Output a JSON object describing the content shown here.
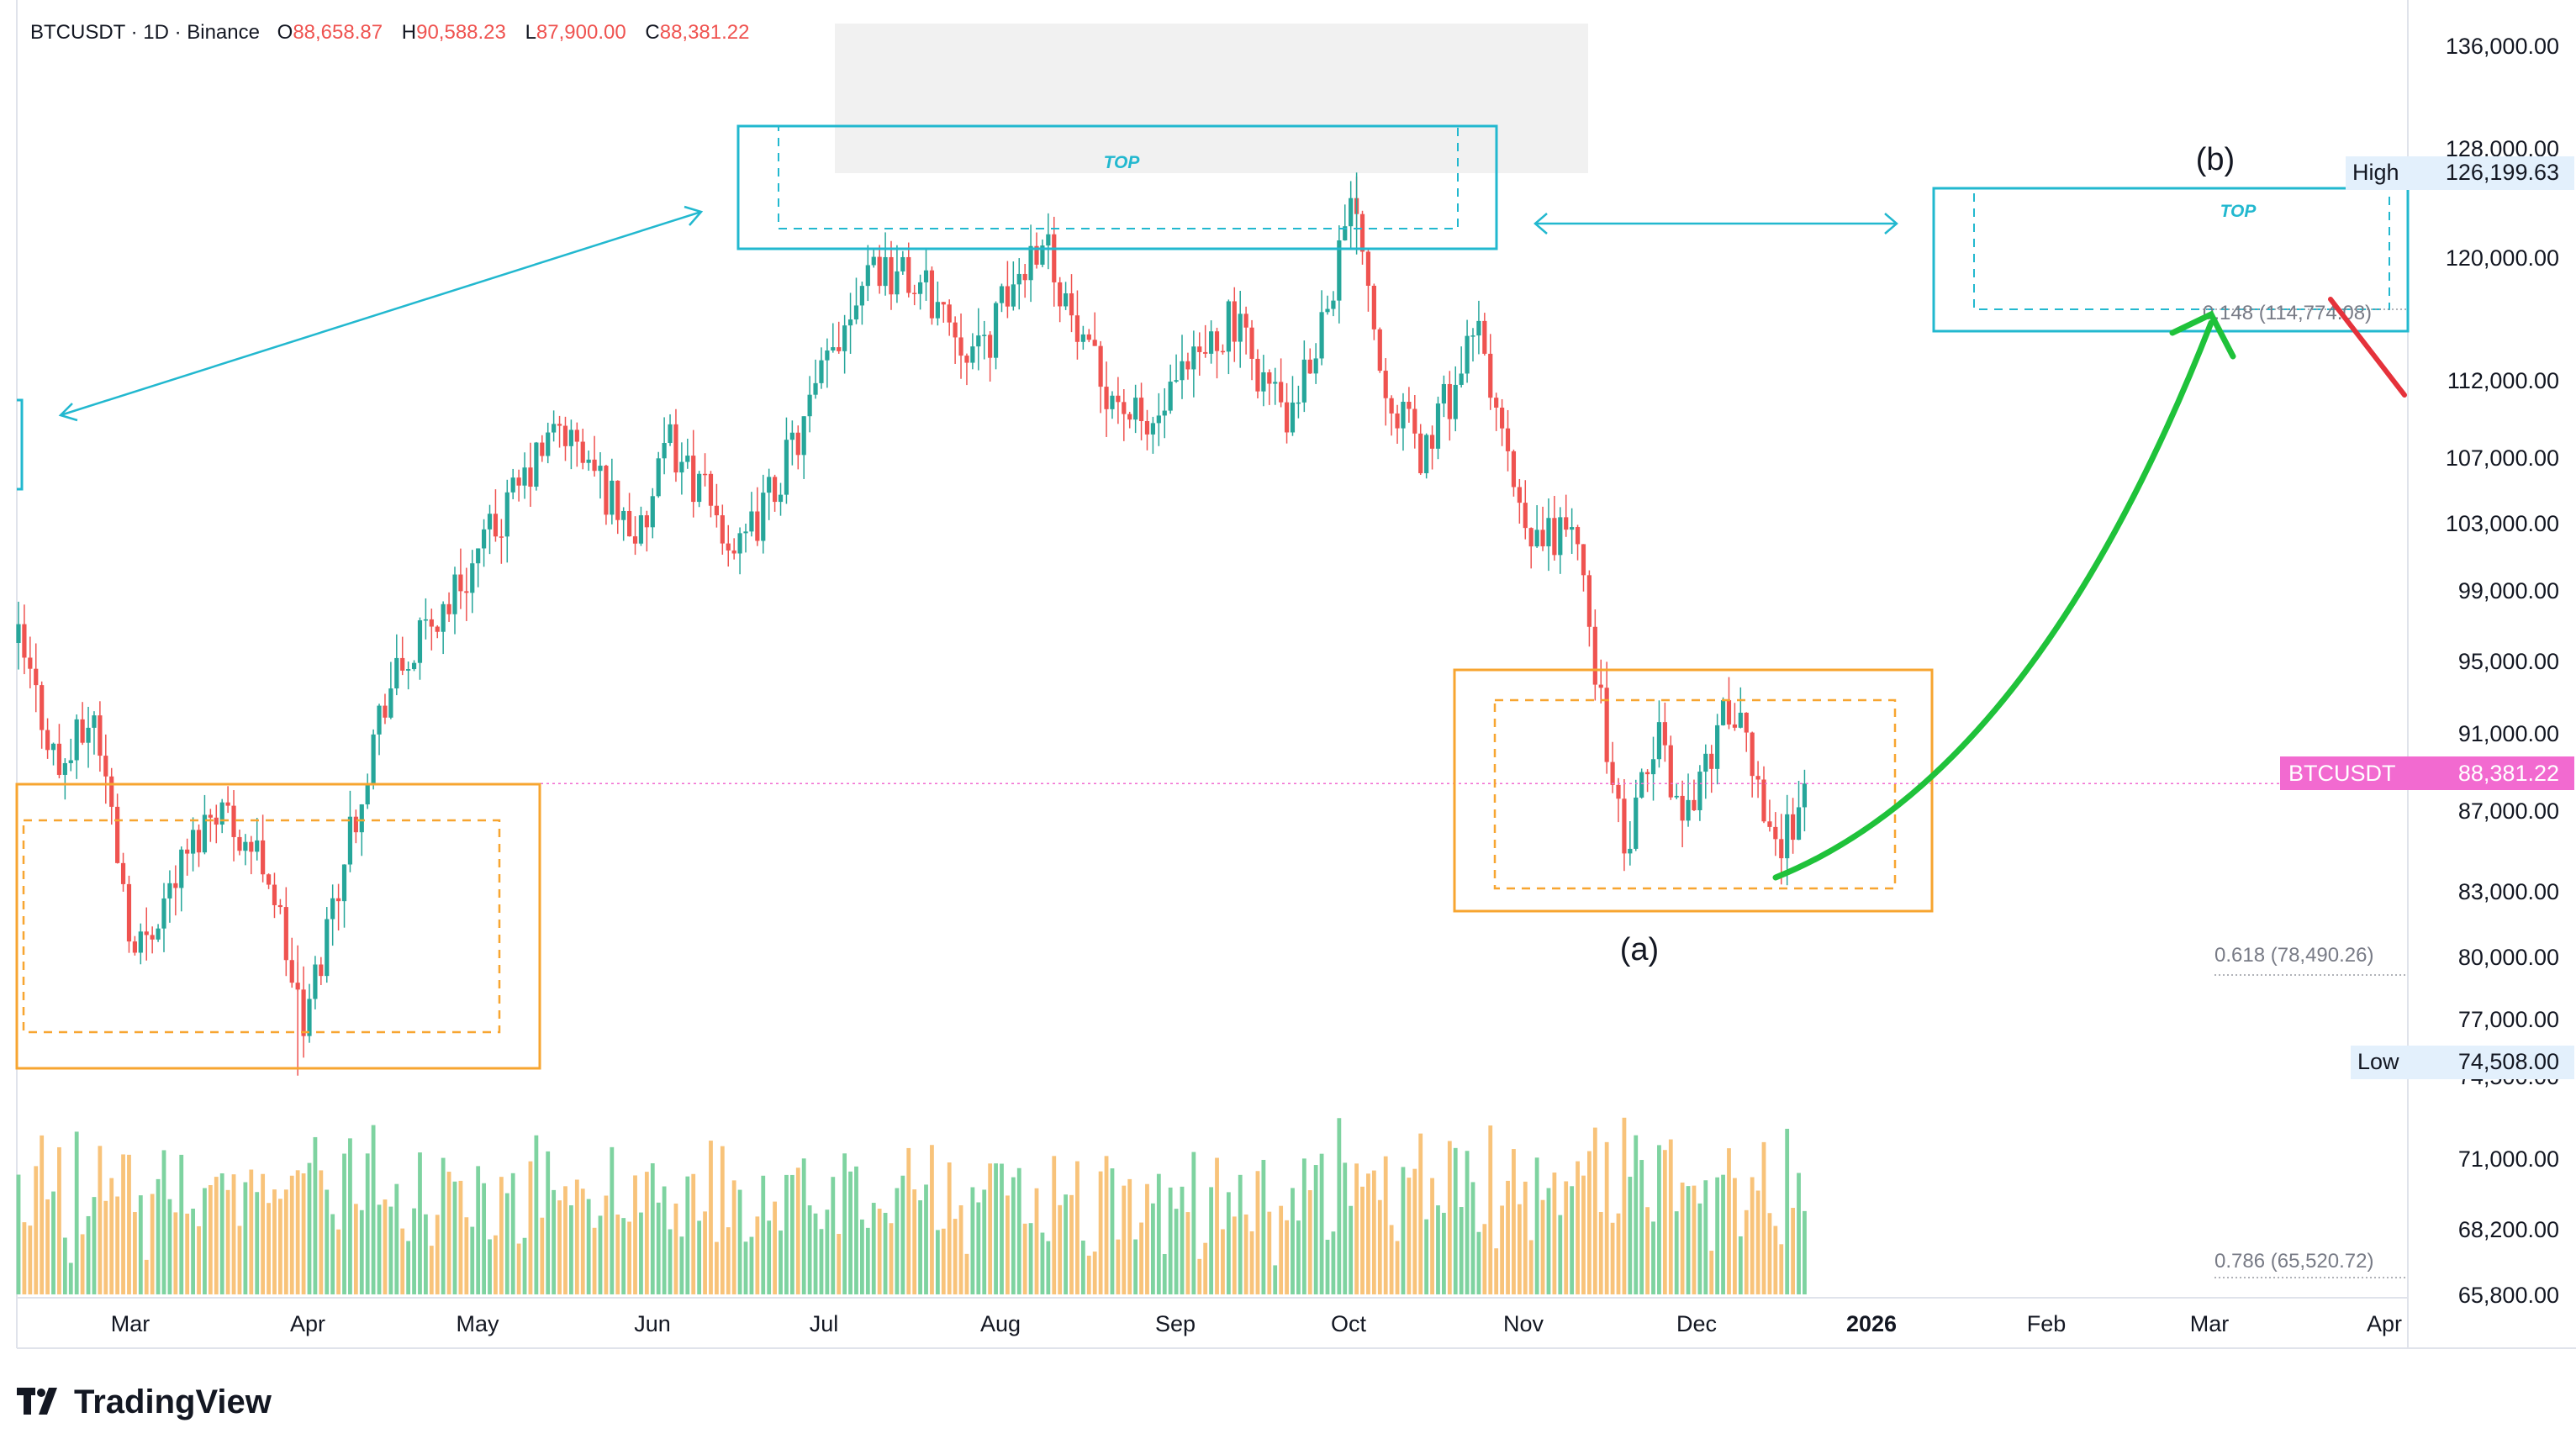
{
  "header": {
    "symbol": "BTCUSDT · 1D · Binance",
    "open_label": "O",
    "open": "88,658.87",
    "high_label": "H",
    "high": "90,588.23",
    "low_label": "L",
    "low": "87,900.00",
    "close_label": "C",
    "close": "88,381.22"
  },
  "colors": {
    "up": "#26a69a",
    "down": "#ef5350",
    "cyan": "#22b8cf",
    "orange": "#f7a530",
    "green_arrow": "#1fc23a",
    "red_arrow": "#e5323b",
    "price_tag": "#f26ad0",
    "vol_up": "#7ed3a0",
    "vol_down": "#f8c37a"
  },
  "price_axis": {
    "ticks": [
      "136,000.00",
      "128,000.00",
      "120,000.00",
      "112,000.00",
      "107,000.00",
      "103,000.00",
      "99,000.00",
      "95,000.00",
      "91,000.00",
      "87,000.00",
      "83,000.00",
      "80,000.00",
      "77,000.00",
      "74,500.00",
      "71,000.00",
      "68,200.00",
      "65,800.00"
    ],
    "high_label": "High",
    "high_value": "126,199.63",
    "low_label": "Low",
    "low_value": "74,508.00",
    "last_label": "BTCUSDT",
    "last_value": "88,381.22"
  },
  "time_axis": {
    "labels": [
      "Mar",
      "Apr",
      "May",
      "Jun",
      "Jul",
      "Aug",
      "Sep",
      "Oct",
      "Nov",
      "Dec",
      "2026",
      "Feb",
      "Mar",
      "Apr"
    ]
  },
  "fib_levels": [
    {
      "text": "0.148 (114,774.08)"
    },
    {
      "text": "0.618 (78,490.26)"
    },
    {
      "text": "0.786 (65,520.72)"
    }
  ],
  "annotations": {
    "wave_a": "(a)",
    "wave_b": "(b)",
    "top_1": "TOP",
    "top_2": "TOP"
  },
  "logo": {
    "text": "TradingView"
  },
  "chart_data": {
    "type": "candlestick",
    "title": "BTCUSDT · 1D · Binance",
    "ylim": [
      64000,
      138000
    ],
    "anchors": [
      {
        "date": "2025-02-18",
        "price": 96000
      },
      {
        "date": "2025-02-25",
        "price": 89000
      },
      {
        "date": "2025-03-03",
        "price": 92000
      },
      {
        "date": "2025-03-10",
        "price": 80000
      },
      {
        "date": "2025-03-24",
        "price": 87500
      },
      {
        "date": "2025-04-02",
        "price": 84000
      },
      {
        "date": "2025-04-08",
        "price": 76500
      },
      {
        "date": "2025-04-22",
        "price": 93000
      },
      {
        "date": "2025-05-08",
        "price": 101000
      },
      {
        "date": "2025-05-22",
        "price": 109000
      },
      {
        "date": "2025-06-05",
        "price": 102000
      },
      {
        "date": "2025-06-10",
        "price": 108000
      },
      {
        "date": "2025-06-22",
        "price": 101000
      },
      {
        "date": "2025-07-03",
        "price": 109000
      },
      {
        "date": "2025-07-14",
        "price": 120000
      },
      {
        "date": "2025-07-25",
        "price": 117500
      },
      {
        "date": "2025-08-02",
        "price": 113500
      },
      {
        "date": "2025-08-13",
        "price": 122000
      },
      {
        "date": "2025-08-20",
        "price": 113500
      },
      {
        "date": "2025-08-31",
        "price": 108500
      },
      {
        "date": "2025-09-14",
        "price": 116000
      },
      {
        "date": "2025-09-25",
        "price": 109000
      },
      {
        "date": "2025-10-06",
        "price": 124500
      },
      {
        "date": "2025-10-10",
        "price": 113000
      },
      {
        "date": "2025-10-17",
        "price": 107000
      },
      {
        "date": "2025-10-27",
        "price": 115000
      },
      {
        "date": "2025-11-04",
        "price": 101500
      },
      {
        "date": "2025-11-12",
        "price": 103000
      },
      {
        "date": "2025-11-21",
        "price": 84500
      },
      {
        "date": "2025-11-27",
        "price": 91000
      },
      {
        "date": "2025-12-01",
        "price": 86500
      },
      {
        "date": "2025-12-09",
        "price": 92500
      },
      {
        "date": "2025-12-18",
        "price": 85000
      },
      {
        "date": "2025-12-22",
        "price": 88381
      }
    ],
    "extremes": {
      "high": 126199.63,
      "low": 74508.0,
      "last": 88381.22
    }
  }
}
